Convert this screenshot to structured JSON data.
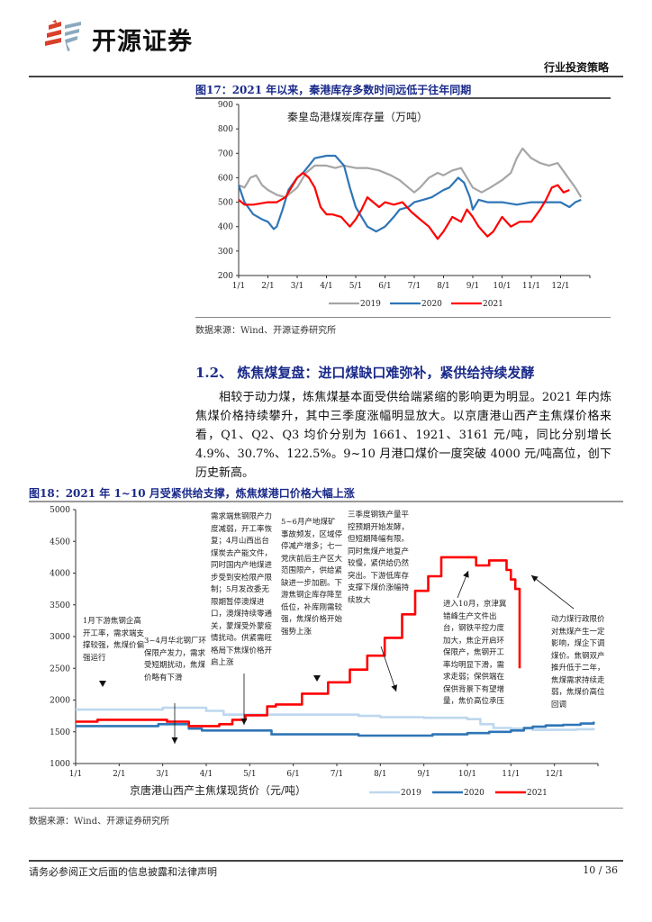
{
  "header": {
    "logo_text": "开源证券",
    "category": "行业投资策略"
  },
  "figure17": {
    "caption": "图17：2021 年以来，秦港库存多数时间远低于往年同期",
    "source": "数据来源：Wind、开源证券研究所"
  },
  "section": {
    "title": "1.2、 炼焦煤复盘：进口煤缺口难弥补，紧供给持续发酵",
    "paragraph": "相较于动力煤，炼焦煤基本面受供给端紧缩的影响更为明显。2021 年内炼焦煤价格持续攀升，其中三季度涨幅明显放大。以京唐港山西产主焦煤价格来看，Q1、Q2、Q3 均价分别为 1661、1921、3161 元/吨，同比分别增长 4.9%、30.7%、122.5%。9~10 月港口煤价一度突破 4000 元/吨高位，创下历史新高。"
  },
  "figure18": {
    "caption": "图18：2021 年 1~10 月受紧供给支撑，炼焦煤港口价格大幅上涨",
    "source": "数据来源：Wind、开源证券研究所",
    "annotations": [
      "1月下游焦钢企高开工率，需求端支撑较强，焦煤价偏强运行",
      "3~4月华北钢厂环保限产发力，需求受短期扰动，焦煤价略有下滑",
      "需求端焦钢限产力度减弱，开工率恢复；4月山西出台煤炭去产能文件，同时国内产地煤进步受到安检限产限制；5月发改委无限期暂停澳煤进口，澳煤持续零通关，蒙煤受外蒙疫情扰动。供紧需旺格局下焦煤价格开启上涨",
      "5~6月产地煤矿事故频发，区域停停减产增多；七一党庆前后主产区大范围限产，供给紧缺进一步加剧。下游焦钢企库存降至低位，补库刚需较强，焦煤价格开始强势上涨",
      "三季度钢铁产量平控预期开始发酵，但短期降幅有限。同时焦煤产地复产较慢，紧供给仍然突出。下游低库存支撑下煤价涨幅持续放大",
      "进入10月，京津冀错峰生产文件出台，钢铁平控力度加大，焦企开启环保限产，焦钢开工率均明显下滑，需求走弱；保供端在保供背景下有望增量，焦价高位承压",
      "动力煤行政限价对焦煤产生一定影响，煤企下调煤价。焦钢双产推升低于二年，焦煤需求持续走弱，焦煤价高位回调"
    ]
  },
  "chart_data": [
    {
      "type": "line",
      "title": "秦皇岛港煤炭库存量（万吨）",
      "xlabel": "",
      "ylabel": "",
      "ylim": [
        200,
        900
      ],
      "yticks": [
        200,
        300,
        400,
        500,
        600,
        700,
        800,
        900
      ],
      "categories": [
        "1/1",
        "2/1",
        "3/1",
        "4/1",
        "5/1",
        "6/1",
        "7/1",
        "8/1",
        "9/1",
        "10/1",
        "11/1",
        "12/1"
      ],
      "grid": false,
      "legend_position": "bottom",
      "series": [
        {
          "name": "2019",
          "color": "#a6a6a6",
          "x": [
            0,
            0.2,
            0.4,
            0.6,
            0.8,
            1.0,
            1.3,
            1.6,
            1.8,
            2.0,
            2.3,
            2.6,
            3.0,
            3.3,
            3.6,
            4.0,
            4.4,
            4.8,
            5.2,
            5.5,
            5.8,
            6.0,
            6.2,
            6.5,
            6.8,
            7.0,
            7.3,
            7.6,
            7.8,
            8.0,
            8.3,
            8.6,
            9.0,
            9.3,
            9.5,
            9.7,
            10.0,
            10.3,
            10.6,
            10.9,
            11.2,
            11.5,
            11.7
          ],
          "values": [
            570,
            560,
            600,
            610,
            570,
            550,
            530,
            520,
            540,
            560,
            620,
            650,
            650,
            640,
            650,
            640,
            640,
            630,
            610,
            590,
            560,
            540,
            560,
            600,
            620,
            610,
            630,
            640,
            600,
            560,
            540,
            560,
            590,
            620,
            680,
            720,
            680,
            660,
            650,
            660,
            610,
            560,
            520
          ]
        },
        {
          "name": "2020",
          "color": "#2e75b6",
          "x": [
            0,
            0.2,
            0.5,
            0.8,
            1.0,
            1.2,
            1.3,
            1.5,
            1.7,
            2.0,
            2.2,
            2.4,
            2.6,
            3.0,
            3.3,
            3.6,
            3.8,
            4.0,
            4.2,
            4.4,
            4.7,
            5.0,
            5.3,
            5.5,
            5.8,
            6.0,
            6.3,
            6.6,
            7.0,
            7.2,
            7.5,
            7.7,
            7.9,
            8.0,
            8.2,
            8.5,
            9.0,
            9.5,
            10.0,
            10.5,
            11.0,
            11.3,
            11.5,
            11.7
          ],
          "values": [
            570,
            500,
            450,
            430,
            420,
            390,
            400,
            470,
            550,
            600,
            620,
            650,
            680,
            690,
            690,
            650,
            560,
            480,
            440,
            400,
            380,
            400,
            440,
            470,
            480,
            500,
            510,
            520,
            550,
            560,
            600,
            580,
            520,
            470,
            510,
            500,
            500,
            490,
            500,
            500,
            500,
            480,
            500,
            510
          ]
        },
        {
          "name": "2021",
          "color": "#ff0000",
          "x": [
            0,
            0.2,
            0.5,
            1.0,
            1.3,
            1.6,
            1.8,
            2.0,
            2.2,
            2.4,
            2.6,
            2.8,
            3.0,
            3.2,
            3.5,
            3.8,
            4.0,
            4.2,
            4.4,
            4.6,
            4.8,
            5.0,
            5.3,
            5.6,
            5.9,
            6.2,
            6.5,
            6.8,
            7.0,
            7.3,
            7.6,
            7.8,
            8.0,
            8.2,
            8.5,
            8.7,
            9.0,
            9.3,
            9.6,
            10.0,
            10.3,
            10.5,
            10.7,
            10.9,
            11.1,
            11.3
          ],
          "values": [
            510,
            490,
            490,
            500,
            500,
            520,
            560,
            600,
            620,
            600,
            560,
            480,
            450,
            450,
            440,
            400,
            430,
            470,
            520,
            500,
            480,
            500,
            490,
            500,
            460,
            430,
            400,
            350,
            380,
            440,
            420,
            470,
            440,
            400,
            360,
            380,
            440,
            400,
            420,
            420,
            470,
            510,
            560,
            570,
            540,
            550
          ]
        }
      ]
    },
    {
      "type": "line",
      "title": "京唐港山西产主焦煤现货价（元/吨）",
      "xlabel": "",
      "ylabel": "",
      "ylim": [
        1000,
        5000
      ],
      "yticks": [
        1000,
        1500,
        2000,
        2500,
        3000,
        3500,
        4000,
        4500,
        5000
      ],
      "categories": [
        "1/1",
        "2/1",
        "3/1",
        "4/1",
        "5/1",
        "6/1",
        "7/1",
        "8/1",
        "9/1",
        "10/1",
        "11/1",
        "12/1"
      ],
      "grid": false,
      "legend_position": "bottom",
      "series": [
        {
          "name": "2019",
          "color": "#bdd7ee",
          "x": [
            0,
            1.9,
            2.0,
            2.9,
            3.0,
            3.3,
            3.4,
            6.0,
            6.5,
            7.0,
            7.5,
            8.0,
            9.0,
            9.3,
            9.6,
            10.0,
            10.5,
            11.0,
            11.5,
            11.9
          ],
          "values": [
            1850,
            1850,
            1880,
            1880,
            1830,
            1830,
            1770,
            1770,
            1750,
            1730,
            1730,
            1720,
            1700,
            1620,
            1560,
            1550,
            1530,
            1530,
            1540,
            1560
          ]
        },
        {
          "name": "2020",
          "color": "#2e75b6",
          "x": [
            0,
            1.8,
            1.9,
            2.5,
            2.6,
            2.8,
            2.9,
            4.4,
            4.5,
            6.4,
            6.5,
            8.0,
            8.2,
            9.0,
            9.5,
            10.0,
            10.3,
            10.5,
            10.8,
            11.2,
            11.6,
            11.9
          ],
          "values": [
            1590,
            1590,
            1620,
            1620,
            1550,
            1550,
            1520,
            1520,
            1460,
            1460,
            1440,
            1440,
            1460,
            1480,
            1500,
            1520,
            1560,
            1580,
            1600,
            1610,
            1630,
            1660
          ]
        },
        {
          "name": "2021",
          "color": "#ff0000",
          "x": [
            0,
            0.4,
            0.5,
            2.0,
            2.1,
            2.5,
            2.6,
            3.2,
            3.3,
            3.5,
            3.6,
            3.8,
            3.9,
            4.3,
            4.4,
            4.5,
            4.6,
            5.1,
            5.2,
            5.7,
            5.8,
            6.2,
            6.3,
            6.6,
            6.7,
            7.0,
            7.1,
            7.4,
            7.5,
            7.7,
            7.8,
            8.0,
            8.1,
            8.3,
            8.4,
            9.1,
            9.2,
            9.4,
            9.5,
            9.8,
            9.9,
            10.0,
            10.1,
            10.2
          ],
          "values": [
            1660,
            1660,
            1690,
            1690,
            1660,
            1660,
            1590,
            1590,
            1620,
            1620,
            1690,
            1690,
            1760,
            1760,
            1900,
            1900,
            1930,
            1930,
            2100,
            2100,
            2280,
            2280,
            2480,
            2480,
            2700,
            2700,
            2980,
            2980,
            3350,
            3350,
            3720,
            3720,
            3950,
            3950,
            4250,
            4250,
            4120,
            4120,
            4200,
            4200,
            4050,
            3900,
            3750,
            2500
          ]
        }
      ]
    }
  ],
  "footer": {
    "disclaimer": "请务必参阅正文后面的信息披露和法律声明",
    "page": "10 / 36"
  }
}
